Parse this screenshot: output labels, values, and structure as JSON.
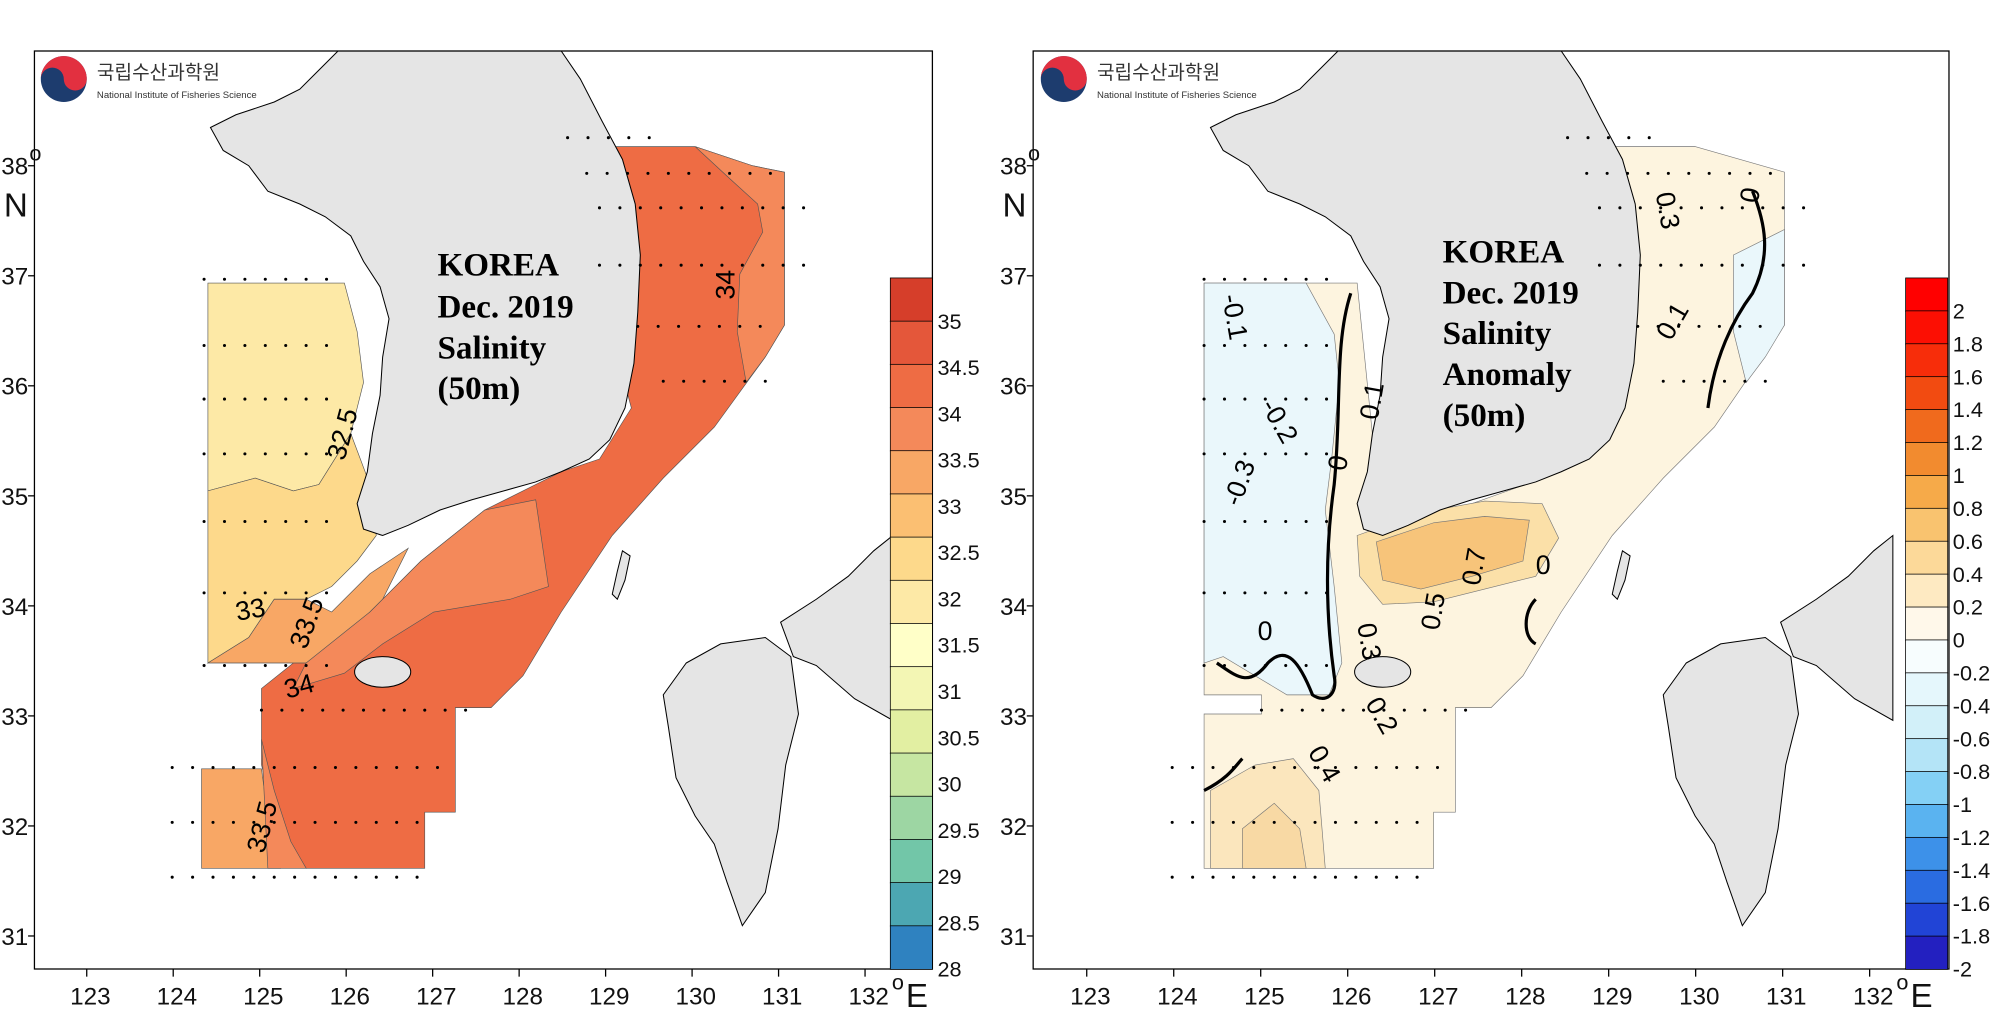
{
  "logo": {
    "korean": "국립수산과학원",
    "english": "National Institute of Fisheries Science"
  },
  "axes": {
    "lon_ticks": [
      "123",
      "124",
      "125",
      "126",
      "127",
      "128",
      "129",
      "130",
      "131",
      "132"
    ],
    "lat_ticks": [
      "38",
      "37",
      "36",
      "35",
      "34",
      "33",
      "32",
      "31"
    ],
    "lon_unit": "E",
    "lat_unit": "N",
    "degree": "o"
  },
  "left_panel": {
    "title_lines": [
      "KOREA",
      "Dec. 2019",
      "Salinity",
      "(50m)"
    ],
    "colorbar_labels": [
      "35",
      "34.5",
      "34",
      "33.5",
      "33",
      "32.5",
      "32",
      "31.5",
      "31",
      "30.5",
      "30",
      "29.5",
      "29",
      "28.5",
      "28"
    ],
    "colorbar_colors": [
      "#d63e2a",
      "#e4573a",
      "#ee6c44",
      "#f4895a",
      "#f8a765",
      "#fbbf72",
      "#fdd98b",
      "#fde9a6",
      "#ffffc8",
      "#f3f6b4",
      "#e2efa2",
      "#c6e6a2",
      "#9dd6a3",
      "#72c6a8",
      "#4ca7b2",
      "#2f82c0"
    ],
    "contour_labels": [
      "32.5",
      "33",
      "33.5",
      "34",
      "34",
      "33.5"
    ]
  },
  "right_panel": {
    "title_lines": [
      "KOREA",
      "Dec. 2019",
      "Salinity",
      "Anomaly",
      "(50m)"
    ],
    "colorbar_labels": [
      "2",
      "1.8",
      "1.6",
      "1.4",
      "1.2",
      "1",
      "0.8",
      "0.6",
      "0.4",
      "0.2",
      "0",
      "-0.2",
      "-0.4",
      "-0.6",
      "-0.8",
      "-1",
      "-1.2",
      "-1.4",
      "-1.6",
      "-1.8",
      "-2"
    ],
    "contour_labels": [
      "-0.1",
      "-0.2",
      "-0.3",
      "0",
      "0.1",
      "0",
      "0.3",
      "0.5",
      "0.7",
      "0",
      "0.2",
      "0.4",
      "0.3",
      "0",
      "0.1"
    ]
  },
  "colors": {
    "land": "#e5e5e5",
    "frame": "#000000"
  }
}
